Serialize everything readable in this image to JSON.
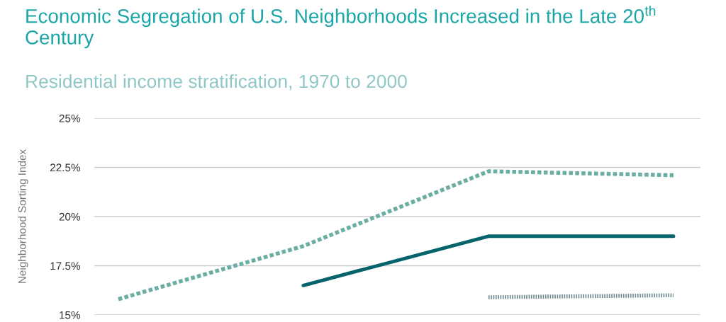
{
  "chart_data": {
    "type": "line",
    "title": "Economic Segregation of U.S. Neighborhoods Increased in the Late 20$^{th}$ Century",
    "subtitle": "Residential income stratification, 1970 to 2000",
    "ylabel": "Neighborhood Sorting Index",
    "categories": [
      null,
      null,
      null,
      null
    ],
    "series": [
      {
        "color": "#6aaea3",
        "line_style": "dashed",
        "values": [
          15.8,
          18.5,
          22.3,
          22.1
        ]
      },
      {
        "color": "#05636b",
        "line_style": "solid",
        "values": [
          null,
          16.5,
          19.0,
          19.0
        ]
      },
      {
        "color": "#6f8a93",
        "line_style": "dotted",
        "values": [
          null,
          null,
          15.9,
          16.0
        ]
      }
    ],
    "ylim": [
      15,
      25
    ],
    "yticks": [
      {
        "value": 15,
        "label": "15%"
      },
      {
        "value": 17.5,
        "label": "17.5%"
      },
      {
        "value": 20,
        "label": "20%"
      },
      {
        "value": 22.5,
        "label": "22.5%"
      },
      {
        "value": 25,
        "label": "25%"
      }
    ],
    "grid": "y",
    "marker": "none"
  }
}
